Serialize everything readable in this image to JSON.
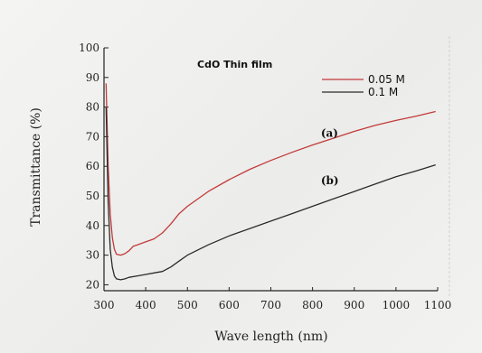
{
  "chart_data": {
    "type": "line",
    "title": "CdO Thin film",
    "xlabel": "Wave length (nm)",
    "ylabel": "Transmittance (%)",
    "xlim": [
      300,
      1100
    ],
    "ylim": [
      18,
      100
    ],
    "xticks": [
      300,
      400,
      500,
      600,
      700,
      800,
      900,
      1000,
      1100
    ],
    "yticks": [
      20,
      30,
      40,
      50,
      60,
      70,
      80,
      90,
      100
    ],
    "grid": false,
    "legend_position": "top-right",
    "series": [
      {
        "name": "0.05 M",
        "color": "#c23a3a",
        "x": [
          305,
          310,
          315,
          320,
          325,
          330,
          340,
          350,
          360,
          370,
          380,
          400,
          420,
          440,
          460,
          480,
          500,
          550,
          600,
          650,
          700,
          750,
          800,
          850,
          900,
          950,
          1000,
          1050,
          1095
        ],
        "y": [
          88,
          60,
          44,
          36,
          32,
          30.3,
          30,
          30.5,
          31.5,
          33,
          33.5,
          34.5,
          35.5,
          37.5,
          40.5,
          44,
          46.5,
          51.5,
          55.5,
          59,
          62,
          64.7,
          67.2,
          69.5,
          71.8,
          73.8,
          75.5,
          77,
          78.5
        ]
      },
      {
        "name": "0.1 M",
        "color": "#2b2b2b",
        "x": [
          305,
          310,
          315,
          320,
          325,
          330,
          340,
          350,
          360,
          380,
          400,
          420,
          440,
          460,
          480,
          500,
          550,
          600,
          650,
          700,
          750,
          800,
          850,
          900,
          950,
          1000,
          1050,
          1095
        ],
        "y": [
          80,
          48,
          32,
          26,
          23,
          22,
          21.7,
          22,
          22.5,
          23,
          23.5,
          24,
          24.5,
          26,
          28,
          30,
          33.5,
          36.5,
          39,
          41.5,
          44,
          46.5,
          49,
          51.5,
          54,
          56.5,
          58.5,
          60.5
        ]
      }
    ],
    "annotations": [
      {
        "text": "(a)",
        "x": 820,
        "y": 70
      },
      {
        "text": "(b)",
        "x": 820,
        "y": 54
      }
    ]
  }
}
